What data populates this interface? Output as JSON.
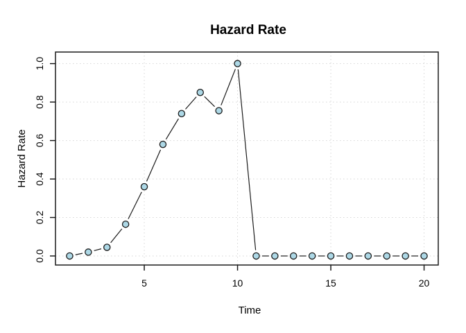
{
  "window": {
    "background": "#ffffff"
  },
  "chart_data": {
    "type": "line",
    "plot_style": "points-and-lines (R type='b', pch=21)",
    "title": "Hazard Rate",
    "xlabel": "Time",
    "ylabel": "Hazard Rate",
    "x": [
      1,
      2,
      3,
      4,
      5,
      6,
      7,
      8,
      9,
      10,
      11,
      12,
      13,
      14,
      15,
      16,
      17,
      18,
      19,
      20
    ],
    "y": [
      0.0,
      0.02,
      0.045,
      0.165,
      0.36,
      0.58,
      0.74,
      0.85,
      0.755,
      1.0,
      0.0,
      0.0,
      0.0,
      0.0,
      0.0,
      0.0,
      0.0,
      0.0,
      0.0,
      0.0
    ],
    "xlim": [
      0.24,
      20.76
    ],
    "ylim": [
      -0.047,
      1.06
    ],
    "x_ticks": [
      5,
      10,
      15,
      20
    ],
    "x_tick_labels": [
      "5",
      "10",
      "15",
      "20"
    ],
    "y_ticks": [
      0.0,
      0.2,
      0.4,
      0.6,
      0.8,
      1.0
    ],
    "y_tick_labels": [
      "0.0",
      "0.2",
      "0.4",
      "0.6",
      "0.8",
      "1.0"
    ],
    "grid": true,
    "legend": null,
    "colors": {
      "point_fill": "#add8e6",
      "point_stroke": "#1a1a1a",
      "line": "#1a1a1a",
      "grid": "#d6d6d6",
      "box": "#1a1a1a",
      "text": "#000000"
    }
  }
}
